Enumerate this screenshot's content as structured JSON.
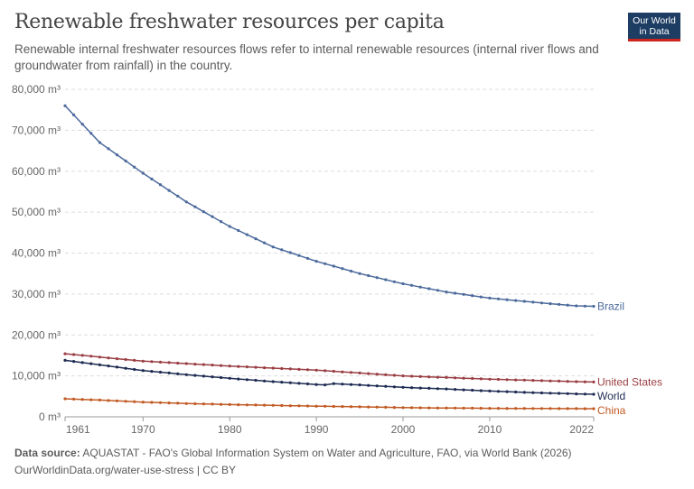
{
  "header": {
    "title": "Renewable freshwater resources per capita",
    "subtitle": "Renewable internal freshwater resources flows refer to internal renewable resources (internal river flows and groundwater from rainfall) in the country.",
    "logo_line1": "Our World",
    "logo_line2": "in Data"
  },
  "footer": {
    "source_label": "Data source:",
    "source_text": "AQUASTAT - FAO's Global Information System on Water and Agriculture, FAO, via World Bank (2026)",
    "url_text": "OurWorldinData.org/water-use-stress | CC BY"
  },
  "colors": {
    "brazil": "#4c6a9c",
    "united_states": "#9a3e43",
    "world": "#1d2b52",
    "china": "#c15a23",
    "grid": "#dddddd",
    "axis_text": "#666666"
  },
  "chart_data": {
    "type": "line",
    "x_ticks": [
      "1961",
      "1970",
      "1980",
      "1990",
      "2000",
      "2010",
      "2022"
    ],
    "y_ticks": [
      "0 m³",
      "10,000 m³",
      "20,000 m³",
      "30,000 m³",
      "40,000 m³",
      "50,000 m³",
      "60,000 m³",
      "70,000 m³",
      "80,000 m³"
    ],
    "xlim": [
      1961,
      2022
    ],
    "ylim": [
      0,
      80000
    ],
    "grid": "horizontal dashed",
    "series": [
      {
        "name": "Brazil",
        "color": "#4c6a9c",
        "x": [
          1961,
          1965,
          1970,
          1975,
          1980,
          1985,
          1990,
          1995,
          2000,
          2005,
          2010,
          2015,
          2020,
          2022
        ],
        "values": [
          76000,
          67000,
          59500,
          52500,
          46500,
          41500,
          38000,
          35000,
          32500,
          30500,
          29000,
          28000,
          27100,
          27000
        ]
      },
      {
        "name": "United States",
        "color": "#9a3e43",
        "x": [
          1961,
          1965,
          1970,
          1975,
          1980,
          1985,
          1990,
          1995,
          2000,
          2005,
          2010,
          2015,
          2020,
          2022
        ],
        "values": [
          15400,
          14600,
          13600,
          13000,
          12400,
          11900,
          11400,
          10700,
          10000,
          9600,
          9200,
          8900,
          8600,
          8500
        ]
      },
      {
        "name": "World",
        "color": "#1d2b52",
        "x": [
          1961,
          1965,
          1970,
          1975,
          1980,
          1985,
          1990,
          1991,
          1992,
          1995,
          2000,
          2005,
          2010,
          2015,
          2020,
          2022
        ],
        "values": [
          13800,
          12700,
          11300,
          10300,
          9400,
          8600,
          7900,
          7800,
          8100,
          7800,
          7200,
          6800,
          6300,
          5900,
          5600,
          5500
        ]
      },
      {
        "name": "China",
        "color": "#c15a23",
        "x": [
          1961,
          1965,
          1970,
          1975,
          1980,
          1985,
          1990,
          1995,
          2000,
          2005,
          2010,
          2015,
          2020,
          2022
        ],
        "values": [
          4400,
          4100,
          3600,
          3250,
          3000,
          2800,
          2600,
          2450,
          2250,
          2150,
          2080,
          2030,
          2000,
          1980
        ]
      }
    ]
  }
}
